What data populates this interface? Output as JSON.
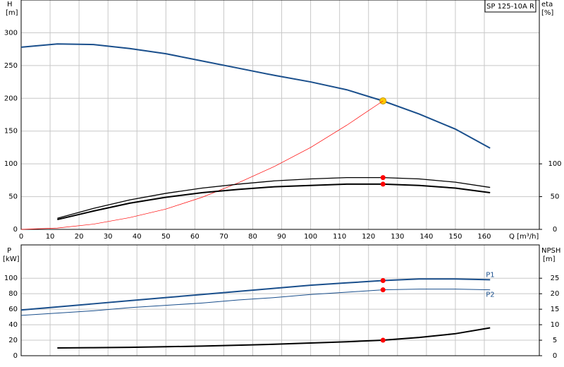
{
  "chart_data": [
    {
      "type": "line",
      "title": "SP 125-10A R",
      "ylabel": "H",
      "yunit": "[m]",
      "y2label": "eta",
      "y2unit": "[%]",
      "xlabel": "Q [m³/h]",
      "xlim": [
        0,
        179
      ],
      "xticks": [
        0,
        10,
        20,
        30,
        40,
        50,
        60,
        70,
        80,
        90,
        100,
        110,
        120,
        130,
        140,
        150,
        160
      ],
      "ylim": [
        0,
        350
      ],
      "yticks": [
        0,
        50,
        100,
        150,
        200,
        250,
        300
      ],
      "y2lim": [
        0,
        350
      ],
      "y2ticks": [
        0,
        50,
        100
      ],
      "grid": true,
      "operating_q": 125,
      "series": [
        {
          "color": "#1a4f8c",
          "width": 2,
          "marker_color": "#ffcc00",
          "x": [
            0,
            12.5,
            25,
            37.5,
            50,
            62.5,
            75,
            87.5,
            100,
            112.5,
            125,
            137.5,
            150,
            162
          ],
          "values": [
            278,
            283,
            282,
            276,
            268,
            257,
            246,
            235,
            225,
            213,
            196,
            176,
            153,
            124
          ]
        },
        {
          "color": "#ff0000",
          "width": 0.7,
          "x": [
            0,
            12.5,
            25,
            37.5,
            50,
            62.5,
            75,
            87.5,
            100,
            112.5,
            125
          ],
          "values": [
            0,
            2,
            8,
            18,
            31,
            49,
            71,
            96,
            125,
            159,
            196
          ]
        },
        {
          "color": "#000000",
          "width": 1.3,
          "axis": "y2",
          "marker_color": "#ff0000",
          "x": [
            12.5,
            25,
            37.5,
            50,
            62.5,
            75,
            87.5,
            100,
            112.5,
            125,
            137.5,
            150,
            162
          ],
          "values": [
            17,
            32,
            45,
            55,
            63,
            69,
            74,
            77,
            79,
            79,
            77,
            72,
            64
          ]
        },
        {
          "color": "#000000",
          "width": 2,
          "axis": "y2",
          "marker_color": "#ff0000",
          "x": [
            12.5,
            25,
            37.5,
            50,
            62.5,
            75,
            87.5,
            100,
            112.5,
            125,
            137.5,
            150,
            162
          ],
          "values": [
            15,
            28,
            40,
            49,
            56,
            61,
            65,
            67,
            69,
            69,
            67,
            63,
            56
          ]
        }
      ]
    },
    {
      "type": "line",
      "ylabel": "P",
      "yunit": "[kW]",
      "y2label": "NPSH",
      "y2unit": "[m]",
      "ylim": [
        0,
        143
      ],
      "yticks": [
        0,
        20,
        40,
        60,
        80,
        100
      ],
      "y2lim": [
        0,
        35.75
      ],
      "y2ticks": [
        0,
        5,
        10,
        15,
        20,
        25
      ],
      "grid": true,
      "operating_q": 125,
      "series": [
        {
          "name": "P1",
          "color": "#1a4f8c",
          "width": 2,
          "marker_color": "#ff0000",
          "x": [
            0,
            12.5,
            25,
            37.5,
            50,
            62.5,
            75,
            87.5,
            100,
            112.5,
            125,
            137.5,
            150,
            162
          ],
          "values": [
            59,
            63,
            67,
            71,
            75,
            79,
            83,
            87,
            91,
            94,
            97,
            99,
            99,
            98
          ]
        },
        {
          "name": "P2",
          "color": "#1a4f8c",
          "width": 1,
          "marker_color": "#ff0000",
          "x": [
            0,
            12.5,
            25,
            37.5,
            50,
            62.5,
            75,
            87.5,
            100,
            112.5,
            125,
            137.5,
            150,
            162
          ],
          "values": [
            52,
            55,
            58,
            62,
            65,
            68,
            72,
            75,
            79,
            82,
            85,
            86,
            86,
            85
          ]
        },
        {
          "color": "#000000",
          "width": 2,
          "axis": "y2",
          "marker_color": "#ff0000",
          "x": [
            12.5,
            25,
            37.5,
            50,
            62.5,
            75,
            87.5,
            100,
            112.5,
            125,
            137.5,
            150,
            162
          ],
          "values": [
            2.5,
            2.6,
            2.7,
            2.9,
            3.1,
            3.4,
            3.7,
            4.1,
            4.5,
            5,
            5.9,
            7.1,
            9
          ]
        }
      ]
    }
  ]
}
